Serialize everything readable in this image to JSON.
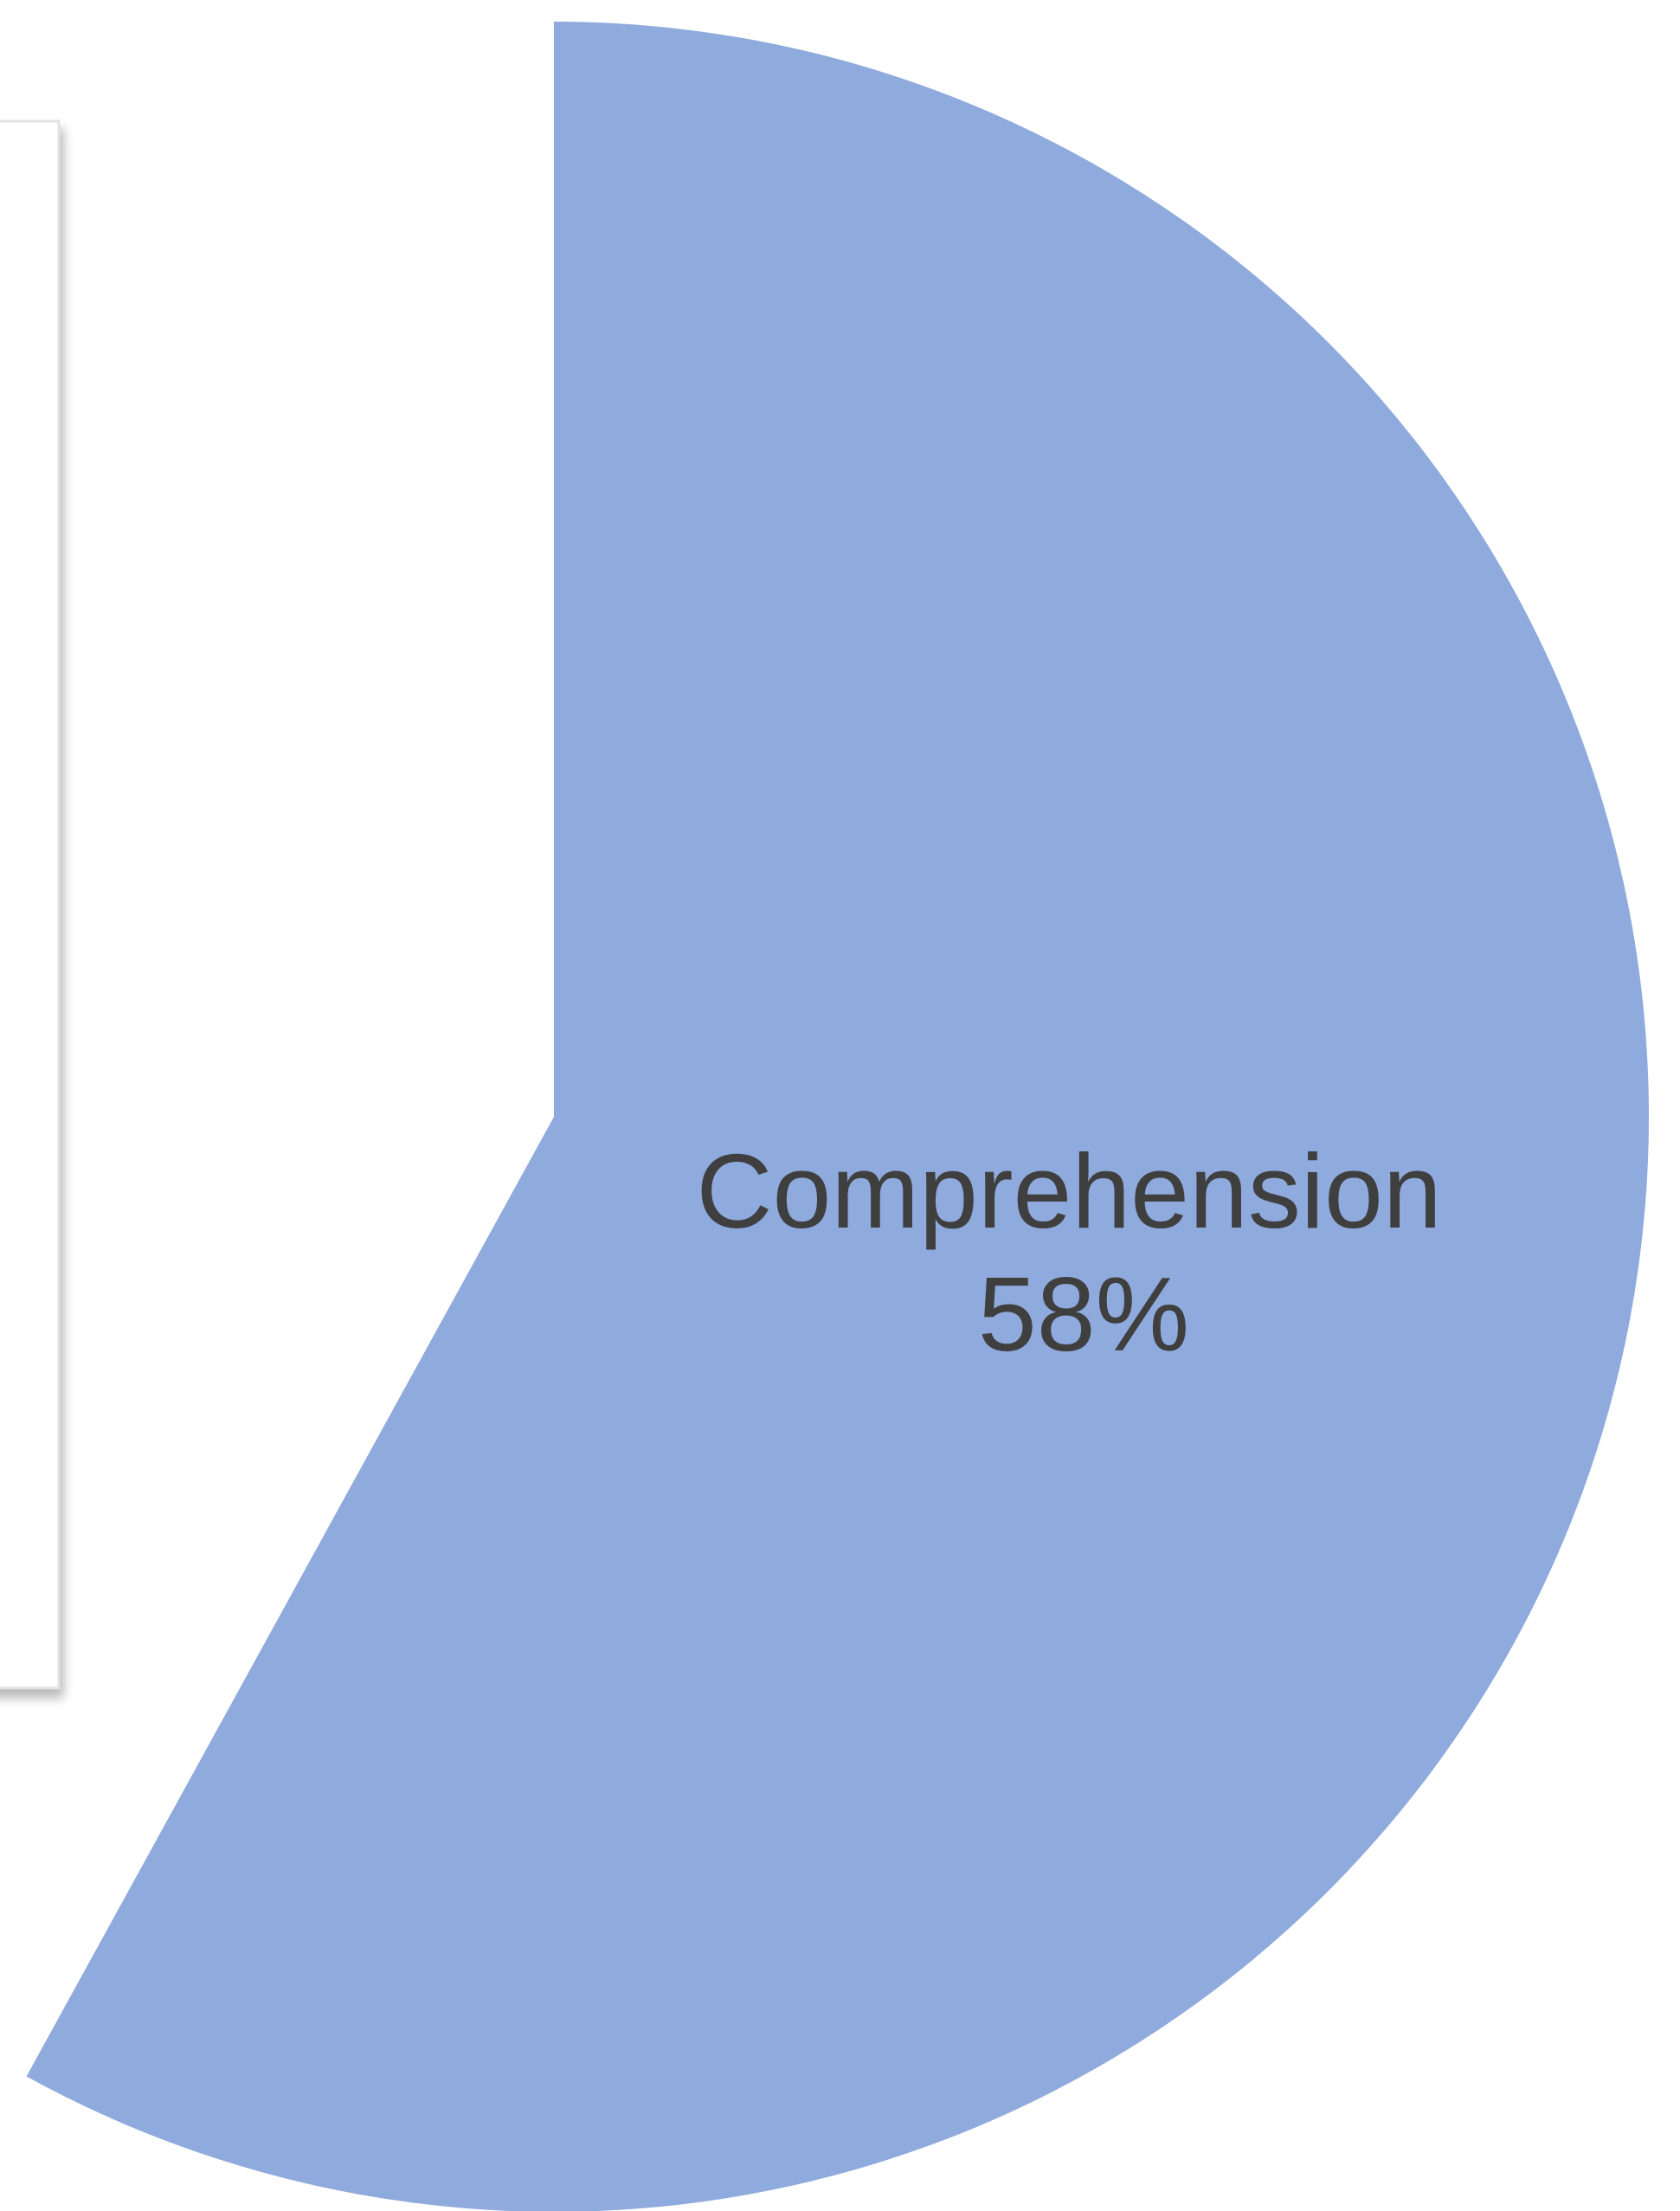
{
  "chart_data": {
    "type": "pie",
    "series": [
      {
        "slices": [
          {
            "label": "Comprehension",
            "value": 58,
            "value_label": "58%",
            "color": "#8FAADC"
          }
        ]
      }
    ],
    "legend": "none",
    "grid": false
  },
  "panel_color": "#ffffff",
  "panel_border_color": "#e2e2e2",
  "background_color": "#ffffff"
}
